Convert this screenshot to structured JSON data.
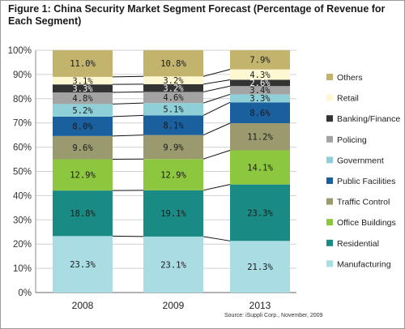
{
  "chart_data": {
    "type": "bar",
    "stacked": true,
    "title": "Figure 1: China Security Market Segment Forecast (Percentage of Revenue for Each Segment)",
    "source": "Source: iSuppli Corp., November, 2009",
    "categories": [
      "2008",
      "2009",
      "2013"
    ],
    "ylim": [
      0,
      100
    ],
    "yticks": [
      "0%",
      "10%",
      "20%",
      "30%",
      "40%",
      "50%",
      "60%",
      "70%",
      "80%",
      "90%",
      "100%"
    ],
    "grid": true,
    "legend_position": "right",
    "series": [
      {
        "name": "Manufacturing",
        "color": "#a9dde3",
        "values": [
          23.3,
          23.1,
          21.3
        ],
        "labels": [
          "23.3%",
          "23.1%",
          "21.3%"
        ]
      },
      {
        "name": "Residential",
        "color": "#1a8a85",
        "values": [
          18.8,
          19.1,
          23.3
        ],
        "labels": [
          "18.8%",
          "19.1%",
          "23.3%"
        ]
      },
      {
        "name": "Office Buildings",
        "color": "#8dc63f",
        "values": [
          12.9,
          12.9,
          14.1
        ],
        "labels": [
          "12.9%",
          "12.9%",
          "14.1%"
        ]
      },
      {
        "name": "Traffic Control",
        "color": "#9a9a6e",
        "values": [
          9.6,
          9.9,
          11.2
        ],
        "labels": [
          "9.6%",
          "9.9%",
          "11.2%"
        ]
      },
      {
        "name": "Public Facilities",
        "color": "#1a5f9e",
        "values": [
          8.0,
          8.1,
          8.6
        ],
        "labels": [
          "8.0%",
          "8.1%",
          "8.6%"
        ]
      },
      {
        "name": "Government",
        "color": "#8fd0d8",
        "values": [
          5.2,
          5.1,
          3.3
        ],
        "labels": [
          "5.2%",
          "5.1%",
          "3.3%"
        ]
      },
      {
        "name": "Policing",
        "color": "#a3a3a3",
        "values": [
          4.8,
          4.6,
          3.4
        ],
        "labels": [
          "4.8%",
          "4.6%",
          "3.4%"
        ]
      },
      {
        "name": "Banking/Finance",
        "color": "#333333",
        "values": [
          3.3,
          3.2,
          2.6
        ],
        "labels": [
          "3.3%",
          "3.2%",
          "2.6%"
        ]
      },
      {
        "name": "Retail",
        "color": "#fdf8d2",
        "values": [
          3.1,
          3.2,
          4.3
        ],
        "labels": [
          "3.1%",
          "3.2%",
          "4.3%"
        ]
      },
      {
        "name": "Others",
        "color": "#c2b46c",
        "values": [
          11.0,
          10.8,
          7.9
        ],
        "labels": [
          "11.0%",
          "10.8%",
          "7.9%"
        ]
      }
    ]
  }
}
